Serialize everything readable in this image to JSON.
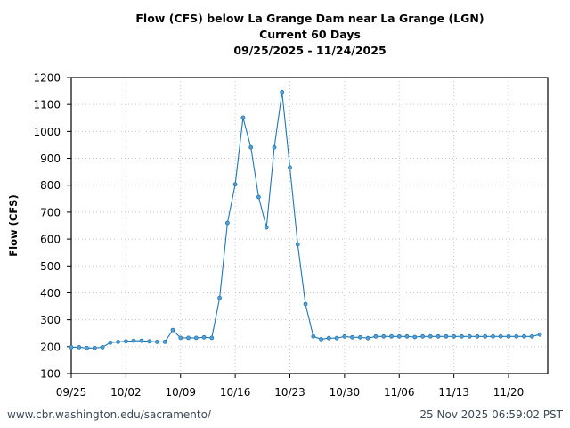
{
  "chart_data": {
    "type": "line",
    "title": "Flow (CFS) below La Grange Dam near La Grange (LGN)",
    "subtitle": "Current 60 Days",
    "date_range": "09/25/2025 - 11/24/2025",
    "xlabel": "",
    "ylabel": "Flow (CFS)",
    "ylim": [
      100,
      1200
    ],
    "yticks": [
      100,
      200,
      300,
      400,
      500,
      600,
      700,
      800,
      900,
      1000,
      1100,
      1200
    ],
    "xticks": [
      "09/25",
      "10/02",
      "10/09",
      "10/16",
      "10/23",
      "10/30",
      "11/06",
      "11/13",
      "11/20"
    ],
    "grid": true,
    "legend": null,
    "series": [
      {
        "name": "Flow (CFS)",
        "color": "#1f77b4",
        "x": [
          "09/25",
          "09/26",
          "09/27",
          "09/28",
          "09/29",
          "09/30",
          "10/01",
          "10/02",
          "10/03",
          "10/04",
          "10/05",
          "10/06",
          "10/07",
          "10/08",
          "10/09",
          "10/10",
          "10/11",
          "10/12",
          "10/13",
          "10/14",
          "10/15",
          "10/16",
          "10/17",
          "10/18",
          "10/19",
          "10/20",
          "10/21",
          "10/22",
          "10/23",
          "10/24",
          "10/25",
          "10/26",
          "10/27",
          "10/28",
          "10/29",
          "10/30",
          "10/31",
          "11/01",
          "11/02",
          "11/03",
          "11/04",
          "11/05",
          "11/06",
          "11/07",
          "11/08",
          "11/09",
          "11/10",
          "11/11",
          "11/12",
          "11/13",
          "11/14",
          "11/15",
          "11/16",
          "11/17",
          "11/18",
          "11/19",
          "11/20",
          "11/21",
          "11/22",
          "11/23",
          "11/24"
        ],
        "values": [
          198,
          198,
          195,
          195,
          198,
          215,
          218,
          220,
          222,
          222,
          220,
          218,
          218,
          262,
          233,
          233,
          233,
          235,
          233,
          381,
          660,
          803,
          1051,
          941,
          756,
          643,
          941,
          1146,
          866,
          580,
          358,
          238,
          228,
          232,
          232,
          238,
          235,
          235,
          232,
          238,
          238,
          238,
          238,
          238,
          236,
          238,
          238,
          238,
          238,
          238,
          238,
          238,
          238,
          238,
          238,
          238,
          238,
          238,
          238,
          238,
          245
        ]
      }
    ]
  },
  "header": {
    "title": "Flow (CFS) below La Grange Dam near La Grange (LGN)",
    "subtitle": "Current 60 Days",
    "date_range": "09/25/2025 - 11/24/2025"
  },
  "footer": {
    "source": "www.cbr.washington.edu/sacramento/",
    "timestamp": "25 Nov 2025 06:59:02 PST"
  }
}
